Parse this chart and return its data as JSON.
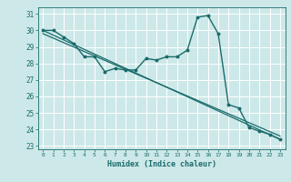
{
  "xlabel": "Humidex (Indice chaleur)",
  "ylabel": "",
  "xlim": [
    -0.5,
    23.5
  ],
  "ylim": [
    22.8,
    31.4
  ],
  "yticks": [
    23,
    24,
    25,
    26,
    27,
    28,
    29,
    30,
    31
  ],
  "xticks": [
    0,
    1,
    2,
    3,
    4,
    5,
    6,
    7,
    8,
    9,
    10,
    11,
    12,
    13,
    14,
    15,
    16,
    17,
    18,
    19,
    20,
    21,
    22,
    23
  ],
  "bg_color": "#cde8e8",
  "grid_color": "#ffffff",
  "line_color": "#1a6b6b",
  "main_x": [
    0,
    1,
    2,
    3,
    4,
    5,
    6,
    7,
    8,
    9,
    10,
    11,
    12,
    13,
    14,
    15,
    16,
    17,
    18,
    19,
    20,
    21,
    22,
    23
  ],
  "main_y": [
    30.0,
    30.0,
    29.6,
    29.2,
    28.4,
    28.4,
    27.5,
    27.7,
    27.6,
    27.6,
    28.3,
    28.2,
    28.4,
    28.4,
    28.8,
    30.8,
    30.9,
    29.8,
    25.5,
    25.3,
    24.1,
    23.9,
    23.7,
    23.4
  ],
  "line2_x": [
    0,
    23
  ],
  "line2_y": [
    30.0,
    23.4
  ],
  "line3_x": [
    0,
    23
  ],
  "line3_y": [
    29.8,
    23.6
  ]
}
